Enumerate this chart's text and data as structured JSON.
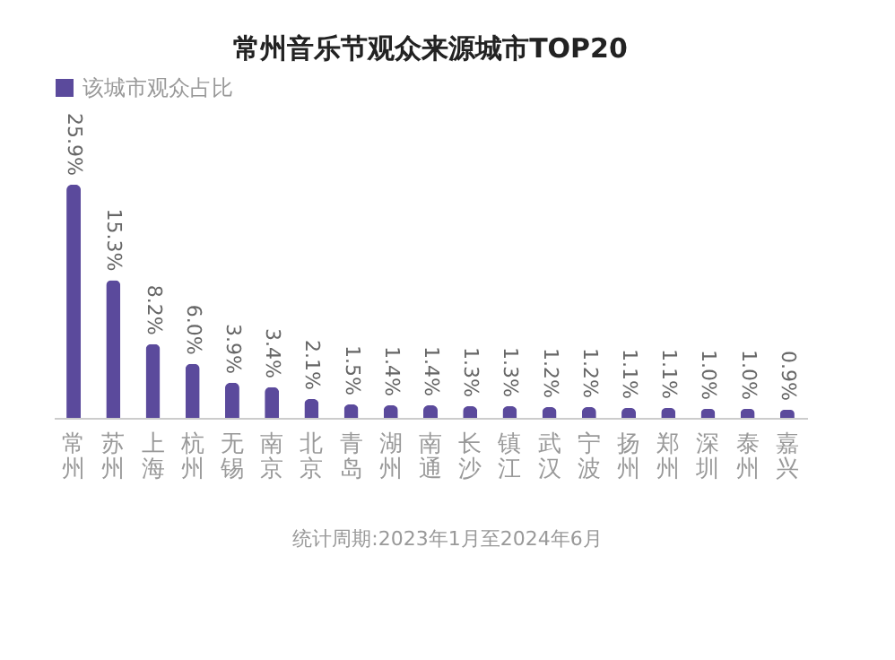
{
  "chart_data": {
    "type": "bar",
    "title": "常州音乐节观众来源城市TOP20",
    "categories": [
      "常州",
      "苏州",
      "上海",
      "杭州",
      "无锡",
      "南京",
      "北京",
      "青岛",
      "湖州",
      "南通",
      "长沙",
      "镇江",
      "武汉",
      "宁波",
      "扬州",
      "郑州",
      "深圳",
      "泰州",
      "嘉兴"
    ],
    "series": [
      {
        "name": "该城市观众占比",
        "color": "#5b4a9c",
        "values": [
          25.9,
          15.3,
          8.2,
          6.0,
          3.9,
          3.4,
          2.1,
          1.5,
          1.4,
          1.4,
          1.3,
          1.3,
          1.2,
          1.2,
          1.1,
          1.1,
          1.0,
          1.0,
          0.9
        ],
        "value_labels": [
          "25.9%",
          "15.3%",
          "8.2%",
          "6.0%",
          "3.9%",
          "3.4%",
          "2.1%",
          "1.5%",
          "1.4%",
          "1.4%",
          "1.3%",
          "1.3%",
          "1.2%",
          "1.2%",
          "1.1%",
          "1.1%",
          "1.0%",
          "1.0%",
          "0.9%"
        ]
      }
    ],
    "legend": "top",
    "annotations": [
      "统计周期:2023年1月至2024年6月"
    ]
  }
}
